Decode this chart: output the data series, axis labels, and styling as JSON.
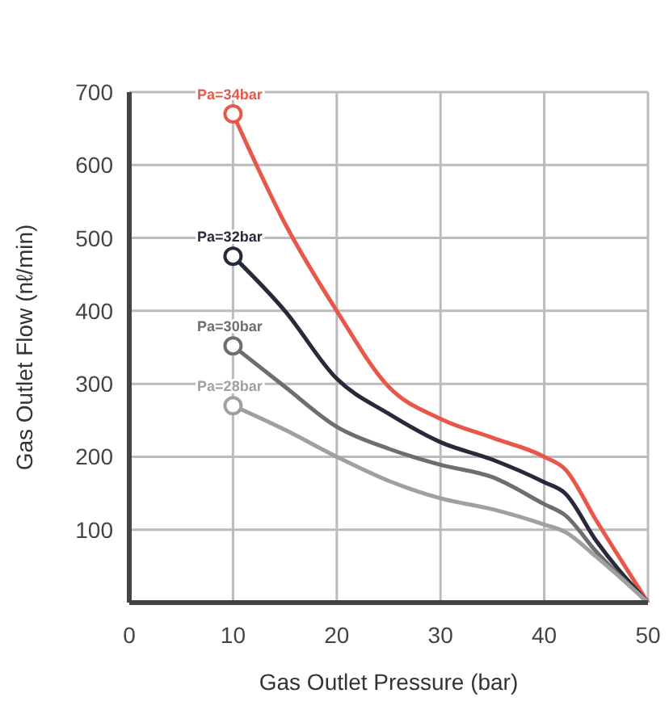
{
  "chart_data": {
    "type": "line",
    "xlabel": "Gas Outlet Pressure (bar)",
    "ylabel": "Gas Outlet Flow (nℓ/min)",
    "x": [
      10,
      15,
      20,
      25,
      30,
      35,
      40,
      42,
      45,
      50
    ],
    "series": [
      {
        "name": "Pa=34bar",
        "color": "#e8584a",
        "values": [
          670,
          520,
          400,
          296,
          252,
          226,
          200,
          183,
          113,
          0
        ]
      },
      {
        "name": "Pa=32bar",
        "color": "#262a3a",
        "values": [
          475,
          400,
          307,
          259,
          220,
          196,
          165,
          150,
          85,
          0
        ]
      },
      {
        "name": "Pa=30bar",
        "color": "#6e6e6e",
        "values": [
          352,
          296,
          241,
          211,
          189,
          172,
          135,
          120,
          70,
          0
        ]
      },
      {
        "name": "Pa=28bar",
        "color": "#a0a0a0",
        "values": [
          270,
          237,
          200,
          167,
          143,
          128,
          107,
          97,
          63,
          0
        ]
      }
    ],
    "xlim": [
      0,
      50
    ],
    "xticks": [
      0,
      10,
      20,
      30,
      40,
      50
    ],
    "ylim": [
      0,
      700
    ],
    "yticks": [
      100,
      200,
      300,
      400,
      500,
      600,
      700
    ],
    "grid": true,
    "line_style": "solid"
  }
}
